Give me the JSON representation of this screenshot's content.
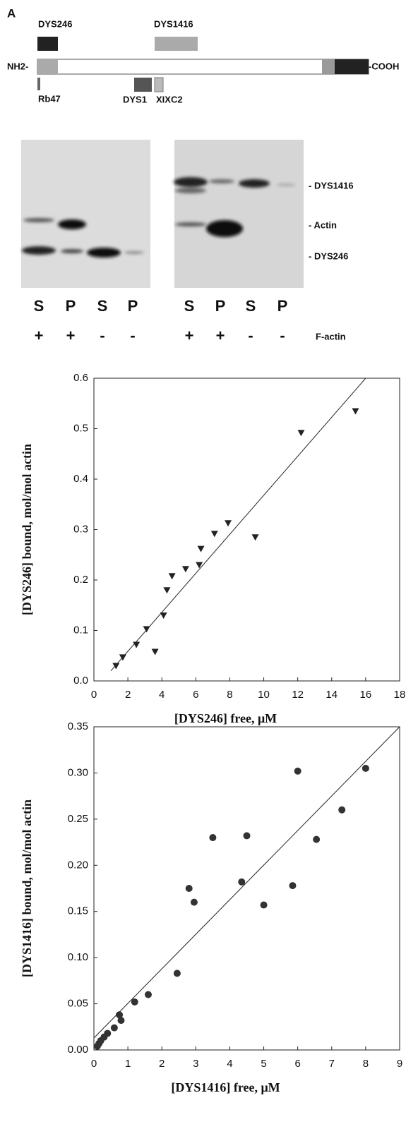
{
  "figure_label": "A",
  "diagram": {
    "domains": [
      {
        "label": "DYS246"
      },
      {
        "label": "DYS1416"
      }
    ],
    "n_terminus": "NH2-",
    "c_terminus": "-COOH",
    "fragments": [
      {
        "label": "Rb47"
      },
      {
        "label": "DYS1"
      },
      {
        "label": "XIXC2"
      }
    ]
  },
  "gel": {
    "band_labels": [
      "- DYS1416",
      "- Actin",
      "- DYS246"
    ],
    "lanes": [
      "S",
      "P",
      "S",
      "P",
      "S",
      "P",
      "S",
      "P"
    ],
    "f_actin": [
      "+",
      "+",
      "-",
      "-",
      "+",
      "+",
      "-",
      "-"
    ],
    "f_actin_label": "F-actin"
  },
  "chart_data": [
    {
      "type": "scatter",
      "x_label": "[DYS246] free, μM",
      "y_label": "[DYS246] bound, mol/mol actin",
      "xlim": [
        0,
        18
      ],
      "ylim": [
        0,
        0.6
      ],
      "xticks": [
        0,
        2,
        4,
        6,
        8,
        10,
        12,
        14,
        16,
        18
      ],
      "yticks": [
        {
          "value": 0,
          "label": "0.0"
        },
        0.1,
        0.2,
        0.3,
        0.4,
        0.5,
        0.6
      ],
      "series": [
        {
          "marker": "triangle-down",
          "color": "#222222",
          "x": [
            1.3,
            1.7,
            2.5,
            3.1,
            3.6,
            4.1,
            4.3,
            4.6,
            5.4,
            6.2,
            6.3,
            7.1,
            7.9,
            9.5,
            12.2,
            15.4
          ],
          "values": [
            0.03,
            0.047,
            0.072,
            0.103,
            0.058,
            0.13,
            0.18,
            0.208,
            0.222,
            0.23,
            0.262,
            0.292,
            0.313,
            0.285,
            0.492,
            0.535
          ]
        },
        {
          "marker": "line",
          "color": "#222222",
          "x": [
            1,
            16
          ],
          "values": [
            0.02,
            0.6
          ]
        }
      ]
    },
    {
      "type": "scatter",
      "x_label": "[DYS1416] free, μM",
      "y_label": "[DYS1416] bound, mol/mol actin",
      "xlim": [
        0,
        9
      ],
      "ylim": [
        0,
        0.35
      ],
      "xticks": [
        0,
        1,
        2,
        3,
        4,
        5,
        6,
        7,
        8,
        9
      ],
      "yticks": [
        {
          "value": 0,
          "label": "0.00"
        },
        0.05,
        {
          "value": 0.1,
          "label": "0.10"
        },
        0.15,
        {
          "value": 0.2,
          "label": "0.20"
        },
        0.25,
        {
          "value": 0.3,
          "label": "0.30"
        },
        0.35
      ],
      "series": [
        {
          "marker": "circle",
          "color": "#333333",
          "x": [
            0.1,
            0.15,
            0.2,
            0.3,
            0.4,
            0.6,
            0.75,
            0.8,
            1.2,
            1.6,
            2.45,
            2.8,
            2.95,
            3.5,
            4.35,
            4.5,
            5.0,
            5.85,
            6.0,
            6.55,
            7.3,
            8.0
          ],
          "values": [
            0.004,
            0.007,
            0.01,
            0.014,
            0.018,
            0.024,
            0.038,
            0.032,
            0.052,
            0.06,
            0.083,
            0.175,
            0.16,
            0.23,
            0.182,
            0.232,
            0.157,
            0.178,
            0.302,
            0.228,
            0.26,
            0.305
          ]
        },
        {
          "marker": "line",
          "color": "#222222",
          "x": [
            0,
            9
          ],
          "values": [
            0.013,
            0.35
          ]
        }
      ]
    }
  ]
}
